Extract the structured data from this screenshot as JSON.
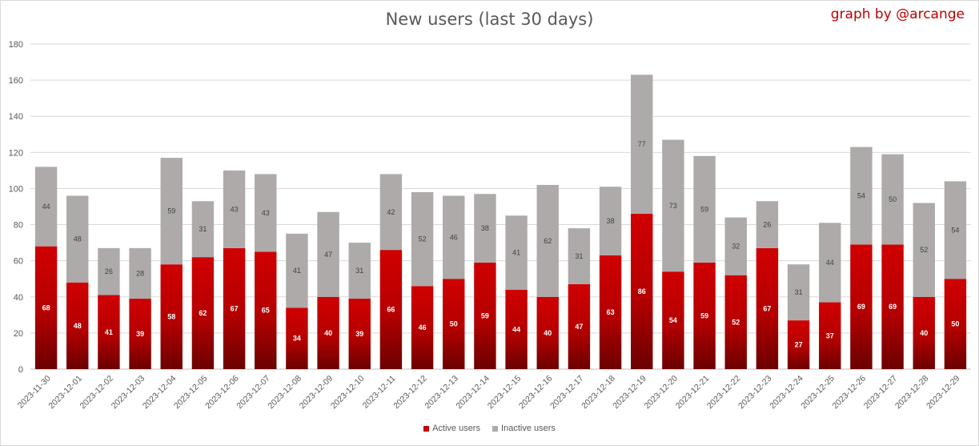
{
  "chart_data": {
    "type": "bar",
    "stacked": true,
    "title": "New users (last 30 days)",
    "credit": "graph by @arcange",
    "categories": [
      "2023-11-30",
      "2023-12-01",
      "2023-12-02",
      "2023-12-03",
      "2023-12-04",
      "2023-12-05",
      "2023-12-06",
      "2023-12-07",
      "2023-12-08",
      "2023-12-09",
      "2023-12-10",
      "2023-12-11",
      "2023-12-12",
      "2023-12-13",
      "2023-12-14",
      "2023-12-15",
      "2023-12-16",
      "2023-12-17",
      "2023-12-18",
      "2023-12-19",
      "2023-12-20",
      "2023-12-21",
      "2023-12-22",
      "2023-12-23",
      "2023-12-24",
      "2023-12-25",
      "2023-12-26",
      "2023-12-27",
      "2023-12-28",
      "2023-12-29"
    ],
    "series": [
      {
        "name": "Active users",
        "color": "#c00000",
        "values": [
          68,
          48,
          41,
          39,
          58,
          62,
          67,
          65,
          34,
          40,
          39,
          66,
          46,
          50,
          59,
          44,
          40,
          47,
          63,
          86,
          54,
          59,
          52,
          67,
          27,
          37,
          69,
          69,
          40,
          50
        ]
      },
      {
        "name": "Inactive users",
        "color": "#aeaaaa",
        "values": [
          44,
          48,
          26,
          28,
          59,
          31,
          43,
          43,
          41,
          47,
          31,
          42,
          52,
          46,
          38,
          41,
          62,
          31,
          38,
          77,
          73,
          59,
          32,
          26,
          31,
          44,
          54,
          50,
          52,
          54
        ]
      }
    ],
    "ylim": [
      0,
      180
    ],
    "yticks": [
      0,
      20,
      40,
      60,
      80,
      100,
      120,
      140,
      160,
      180
    ],
    "grid": true,
    "legend_position": "bottom"
  }
}
